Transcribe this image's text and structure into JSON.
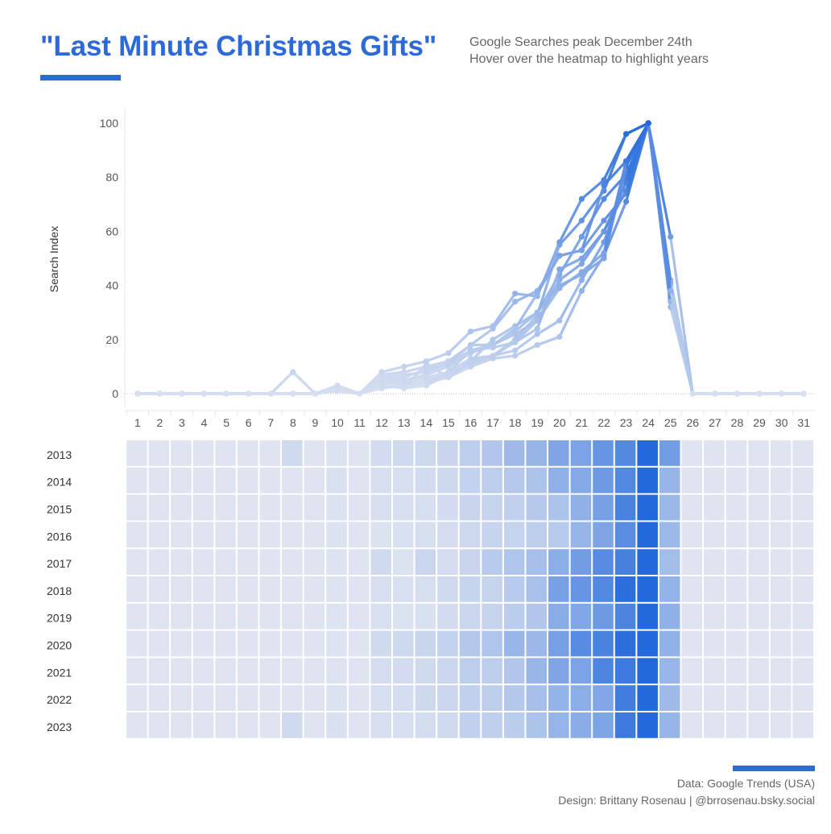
{
  "header": {
    "title": "\"Last Minute Christmas Gifts\"",
    "subtitle_line1": "Google Searches peak December 24th",
    "subtitle_line2": "Hover over the heatmap to highlight years",
    "accent_color": "#2d6ad8"
  },
  "footer": {
    "source": "Data: Google Trends (USA)",
    "credit": "Design: Brittany Rosenau | @brrosenau.bsky.social"
  },
  "chart_data": [
    {
      "type": "line",
      "ylabel": "Search Index",
      "xlabel": "",
      "ylim": [
        0,
        100
      ],
      "yticks": [
        0,
        20,
        40,
        60,
        80,
        100
      ],
      "x": [
        1,
        2,
        3,
        4,
        5,
        6,
        7,
        8,
        9,
        10,
        11,
        12,
        13,
        14,
        15,
        16,
        17,
        18,
        19,
        20,
        21,
        22,
        23,
        24,
        25,
        26,
        27,
        28,
        29,
        30,
        31
      ],
      "grid": false,
      "series": [
        {
          "year": "2013",
          "values": [
            0,
            0,
            0,
            0,
            0,
            0,
            0,
            8,
            0,
            2,
            0,
            7,
            8,
            10,
            12,
            18,
            24,
            34,
            38,
            51,
            53,
            64,
            74,
            100,
            58,
            0,
            0,
            0,
            0,
            0,
            0
          ]
        },
        {
          "year": "2014",
          "values": [
            0,
            0,
            0,
            0,
            0,
            0,
            0,
            0,
            0,
            3,
            0,
            5,
            5,
            7,
            10,
            15,
            18,
            22,
            27,
            42,
            48,
            60,
            75,
            100,
            38,
            0,
            0,
            0,
            0,
            0,
            0
          ]
        },
        {
          "year": "2015",
          "values": [
            0,
            0,
            0,
            0,
            0,
            0,
            0,
            0,
            0,
            2,
            0,
            4,
            4,
            5,
            7,
            12,
            14,
            16,
            22,
            27,
            42,
            56,
            79,
            100,
            36,
            0,
            0,
            0,
            0,
            0,
            0
          ]
        },
        {
          "year": "2016",
          "values": [
            0,
            0,
            0,
            0,
            0,
            0,
            0,
            0,
            0,
            2,
            0,
            2,
            3,
            4,
            6,
            10,
            13,
            14,
            18,
            21,
            38,
            51,
            71,
            100,
            35,
            0,
            0,
            0,
            0,
            0,
            0
          ]
        },
        {
          "year": "2017",
          "values": [
            0,
            0,
            0,
            0,
            0,
            0,
            0,
            0,
            0,
            1,
            0,
            8,
            2,
            11,
            6,
            12,
            20,
            25,
            30,
            44,
            58,
            72,
            81,
            100,
            32,
            0,
            0,
            0,
            0,
            0,
            0
          ]
        },
        {
          "year": "2018",
          "values": [
            0,
            0,
            0,
            0,
            0,
            0,
            0,
            0,
            0,
            1,
            0,
            4,
            3,
            4,
            8,
            13,
            14,
            20,
            29,
            55,
            64,
            75,
            96,
            100,
            40,
            0,
            0,
            0,
            0,
            0,
            0
          ]
        },
        {
          "year": "2019",
          "values": [
            0,
            0,
            0,
            0,
            0,
            0,
            0,
            0,
            0,
            1,
            0,
            3,
            2,
            3,
            7,
            11,
            14,
            19,
            24,
            46,
            50,
            60,
            78,
            100,
            42,
            0,
            0,
            0,
            0,
            0,
            0
          ]
        },
        {
          "year": "2020",
          "values": [
            0,
            0,
            0,
            0,
            0,
            0,
            0,
            0,
            0,
            1,
            0,
            8,
            10,
            12,
            15,
            23,
            25,
            37,
            36,
            56,
            72,
            79,
            96,
            100,
            41,
            0,
            0,
            0,
            0,
            0,
            0
          ]
        },
        {
          "year": "2021",
          "values": [
            0,
            0,
            0,
            0,
            0,
            0,
            0,
            0,
            0,
            1,
            0,
            6,
            7,
            8,
            11,
            18,
            18,
            24,
            37,
            51,
            53,
            77,
            86,
            100,
            37,
            0,
            0,
            0,
            0,
            0,
            0
          ]
        },
        {
          "year": "2022",
          "values": [
            0,
            0,
            0,
            0,
            0,
            0,
            0,
            0,
            0,
            2,
            0,
            5,
            6,
            9,
            11,
            16,
            18,
            23,
            30,
            40,
            44,
            50,
            84,
            100,
            34,
            0,
            0,
            0,
            0,
            0,
            0
          ]
        },
        {
          "year": "2023",
          "values": [
            0,
            0,
            0,
            0,
            0,
            0,
            0,
            8,
            0,
            3,
            0,
            5,
            5,
            6,
            8,
            16,
            17,
            19,
            27,
            39,
            45,
            52,
            86,
            100,
            38,
            0,
            0,
            0,
            0,
            0,
            0
          ]
        }
      ]
    },
    {
      "type": "heatmap",
      "rows": [
        "2013",
        "2014",
        "2015",
        "2016",
        "2017",
        "2018",
        "2019",
        "2020",
        "2021",
        "2022",
        "2023"
      ],
      "columns": [
        1,
        2,
        3,
        4,
        5,
        6,
        7,
        8,
        9,
        10,
        11,
        12,
        13,
        14,
        15,
        16,
        17,
        18,
        19,
        20,
        21,
        22,
        23,
        24,
        25,
        26,
        27,
        28,
        29,
        30,
        31
      ],
      "value_source": "same values as line series by year",
      "color_low": "#dfe4f0",
      "color_high": "#2369db"
    }
  ]
}
